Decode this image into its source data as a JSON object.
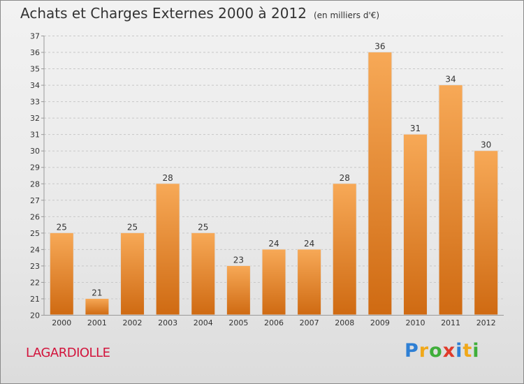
{
  "header": {
    "title": "Achats et Charges Externes 2000 à 2012",
    "subtitle": "(en milliers d'€)"
  },
  "footer": {
    "place": "LAGARDIOLLE",
    "logo": "Proxiti"
  },
  "colors": {
    "bar_top": "#f7a957",
    "bar_bottom": "#cf6a12",
    "place_text": "#d2143c"
  },
  "chart_data": {
    "type": "bar",
    "title": "Achats et Charges Externes 2000 à 2012",
    "subtitle": "(en milliers d'€)",
    "xlabel": "",
    "ylabel": "",
    "categories": [
      "2000",
      "2001",
      "2002",
      "2003",
      "2004",
      "2005",
      "2006",
      "2007",
      "2008",
      "2009",
      "2010",
      "2011",
      "2012"
    ],
    "values": [
      25,
      21,
      25,
      28,
      25,
      23,
      24,
      24,
      28,
      36,
      31,
      34,
      30
    ],
    "ylim": [
      20,
      37
    ],
    "yticks": [
      20,
      21,
      22,
      23,
      24,
      25,
      26,
      27,
      28,
      29,
      30,
      31,
      32,
      33,
      34,
      35,
      36,
      37
    ],
    "grid": true,
    "legend": "none"
  }
}
